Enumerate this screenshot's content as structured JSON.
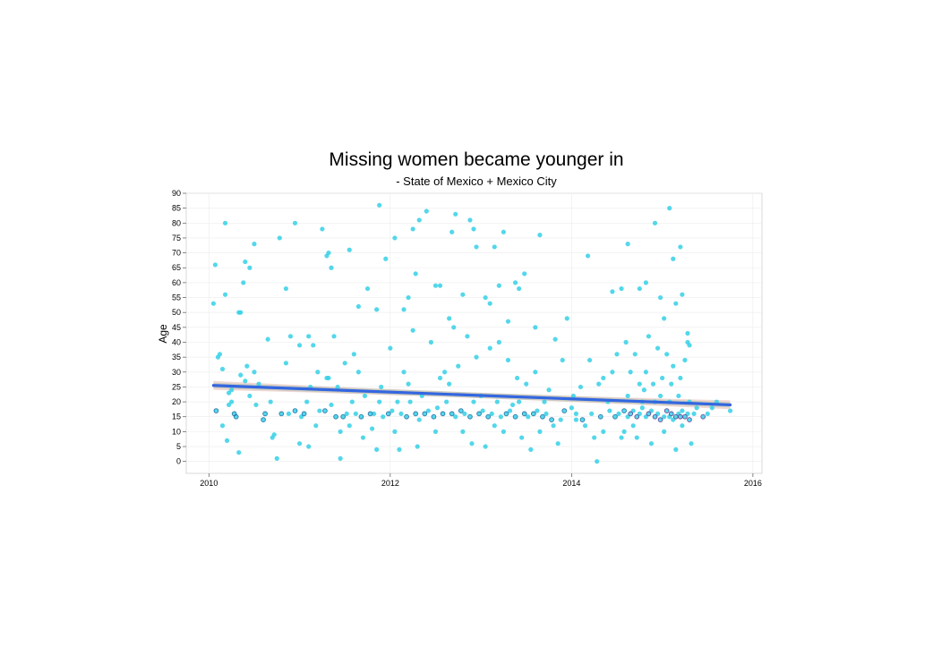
{
  "chart_data": {
    "type": "scatter",
    "title": "Missing women became younger in",
    "subtitle": "- State of Mexico + Mexico City",
    "xlabel": "",
    "ylabel": "Age",
    "xlim": [
      2009.75,
      2016.1
    ],
    "ylim": [
      -4,
      90
    ],
    "x_ticks": [
      2010,
      2012,
      2014,
      2016
    ],
    "y_ticks": [
      0,
      5,
      10,
      15,
      20,
      25,
      30,
      35,
      40,
      45,
      50,
      55,
      60,
      65,
      70,
      75,
      80,
      85,
      90
    ],
    "grid": true,
    "legend": "none",
    "colors": {
      "points": "#35d0e6",
      "point_outline": "#1f5f9a",
      "dense_overlap": "#6a2a8a",
      "trend_line": "#3366e0",
      "confidence_band": "#e6b8b0",
      "grid": "#ececec",
      "panel_border": "#d0d0d0"
    },
    "trend_line": {
      "type": "linear",
      "points": [
        {
          "x": 2010.05,
          "y": 25.5
        },
        {
          "x": 2015.75,
          "y": 19.0
        }
      ],
      "band_half_width_ends": 1.5
    },
    "series": [
      {
        "values": [
          [
            2010.05,
            53
          ],
          [
            2010.07,
            66
          ],
          [
            2010.1,
            35
          ],
          [
            2010.12,
            36
          ],
          [
            2010.15,
            31
          ],
          [
            2010.18,
            80
          ],
          [
            2010.18,
            56
          ],
          [
            2010.2,
            7
          ],
          [
            2010.22,
            23
          ],
          [
            2010.25,
            20
          ],
          [
            2010.3,
            15
          ],
          [
            2010.33,
            3
          ],
          [
            2010.33,
            50
          ],
          [
            2010.35,
            50
          ],
          [
            2010.38,
            60
          ],
          [
            2010.4,
            67
          ],
          [
            2010.42,
            32
          ],
          [
            2010.45,
            65
          ],
          [
            2010.5,
            73
          ],
          [
            2010.55,
            26
          ],
          [
            2010.65,
            41
          ],
          [
            2010.72,
            9
          ],
          [
            2010.75,
            1
          ],
          [
            2010.78,
            75
          ],
          [
            2010.85,
            58
          ],
          [
            2010.9,
            42
          ],
          [
            2010.95,
            80
          ],
          [
            2011.0,
            39
          ],
          [
            2011.05,
            16
          ],
          [
            2011.1,
            42
          ],
          [
            2011.15,
            39
          ],
          [
            2011.25,
            78
          ],
          [
            2011.3,
            69
          ],
          [
            2011.32,
            70
          ],
          [
            2011.35,
            65
          ],
          [
            2011.38,
            42
          ],
          [
            2011.45,
            1
          ],
          [
            2011.5,
            33
          ],
          [
            2011.55,
            71
          ],
          [
            2011.65,
            52
          ],
          [
            2011.75,
            58
          ],
          [
            2011.85,
            51
          ],
          [
            2011.88,
            86
          ],
          [
            2011.95,
            68
          ],
          [
            2012.05,
            75
          ],
          [
            2012.15,
            51
          ],
          [
            2012.2,
            55
          ],
          [
            2012.25,
            78
          ],
          [
            2012.28,
            63
          ],
          [
            2012.32,
            81
          ],
          [
            2012.4,
            84
          ],
          [
            2012.5,
            59
          ],
          [
            2012.55,
            59
          ],
          [
            2012.65,
            48
          ],
          [
            2012.68,
            77
          ],
          [
            2012.72,
            83
          ],
          [
            2012.8,
            56
          ],
          [
            2012.88,
            81
          ],
          [
            2012.92,
            78
          ],
          [
            2012.95,
            72
          ],
          [
            2013.05,
            55
          ],
          [
            2013.1,
            53
          ],
          [
            2013.15,
            72
          ],
          [
            2013.2,
            59
          ],
          [
            2013.25,
            77
          ],
          [
            2013.3,
            47
          ],
          [
            2013.38,
            60
          ],
          [
            2013.42,
            58
          ],
          [
            2013.48,
            63
          ],
          [
            2013.6,
            45
          ],
          [
            2013.65,
            76
          ],
          [
            2013.82,
            41
          ],
          [
            2013.95,
            48
          ],
          [
            2014.02,
            22
          ],
          [
            2014.1,
            25
          ],
          [
            2014.18,
            69
          ],
          [
            2014.28,
            0
          ],
          [
            2014.35,
            28
          ],
          [
            2014.45,
            57
          ],
          [
            2014.55,
            58
          ],
          [
            2014.62,
            73
          ],
          [
            2014.75,
            58
          ],
          [
            2014.82,
            60
          ],
          [
            2014.92,
            80
          ],
          [
            2014.98,
            55
          ],
          [
            2015.02,
            48
          ],
          [
            2015.08,
            85
          ],
          [
            2015.12,
            68
          ],
          [
            2015.15,
            53
          ],
          [
            2015.2,
            72
          ],
          [
            2015.22,
            56
          ],
          [
            2015.28,
            43
          ],
          [
            2015.3,
            39
          ],
          [
            2015.75,
            17
          ],
          [
            2010.08,
            17
          ],
          [
            2010.22,
            19
          ],
          [
            2010.28,
            16
          ],
          [
            2010.4,
            27
          ],
          [
            2010.45,
            22
          ],
          [
            2010.52,
            19
          ],
          [
            2010.62,
            16
          ],
          [
            2010.68,
            20
          ],
          [
            2010.8,
            16
          ],
          [
            2010.88,
            16
          ],
          [
            2010.95,
            17
          ],
          [
            2011.02,
            15
          ],
          [
            2011.08,
            20
          ],
          [
            2011.12,
            25
          ],
          [
            2011.18,
            12
          ],
          [
            2011.22,
            17
          ],
          [
            2011.28,
            17
          ],
          [
            2011.32,
            28
          ],
          [
            2011.4,
            15
          ],
          [
            2011.42,
            25
          ],
          [
            2011.48,
            15
          ],
          [
            2011.52,
            16
          ],
          [
            2011.58,
            20
          ],
          [
            2011.62,
            16
          ],
          [
            2011.68,
            15
          ],
          [
            2011.72,
            22
          ],
          [
            2011.78,
            16
          ],
          [
            2011.82,
            16
          ],
          [
            2011.88,
            20
          ],
          [
            2011.92,
            15
          ],
          [
            2011.98,
            16
          ],
          [
            2012.02,
            17
          ],
          [
            2012.08,
            20
          ],
          [
            2012.12,
            16
          ],
          [
            2012.18,
            15
          ],
          [
            2012.22,
            20
          ],
          [
            2012.28,
            16
          ],
          [
            2012.32,
            14
          ],
          [
            2012.38,
            16
          ],
          [
            2012.42,
            17
          ],
          [
            2012.48,
            15
          ],
          [
            2012.52,
            18
          ],
          [
            2012.58,
            16
          ],
          [
            2012.62,
            20
          ],
          [
            2012.68,
            16
          ],
          [
            2012.72,
            15
          ],
          [
            2012.78,
            17
          ],
          [
            2012.82,
            16
          ],
          [
            2012.88,
            15
          ],
          [
            2012.92,
            20
          ],
          [
            2012.98,
            16
          ],
          [
            2013.02,
            17
          ],
          [
            2013.08,
            15
          ],
          [
            2013.12,
            16
          ],
          [
            2013.18,
            20
          ],
          [
            2013.22,
            15
          ],
          [
            2013.28,
            16
          ],
          [
            2013.32,
            17
          ],
          [
            2013.38,
            15
          ],
          [
            2013.42,
            20
          ],
          [
            2013.48,
            16
          ],
          [
            2013.52,
            15
          ],
          [
            2013.58,
            16
          ],
          [
            2013.62,
            17
          ],
          [
            2013.68,
            15
          ],
          [
            2013.72,
            16
          ],
          [
            2013.78,
            14
          ],
          [
            2013.88,
            14
          ],
          [
            2013.92,
            17
          ],
          [
            2014.05,
            16
          ],
          [
            2014.12,
            14
          ],
          [
            2014.22,
            16
          ],
          [
            2014.32,
            15
          ],
          [
            2014.42,
            17
          ],
          [
            2014.48,
            15
          ],
          [
            2014.52,
            16
          ],
          [
            2014.58,
            17
          ],
          [
            2014.62,
            15
          ],
          [
            2014.65,
            16
          ],
          [
            2014.68,
            17
          ],
          [
            2014.72,
            15
          ],
          [
            2014.75,
            16
          ],
          [
            2014.78,
            18
          ],
          [
            2014.82,
            15
          ],
          [
            2014.85,
            16
          ],
          [
            2014.88,
            17
          ],
          [
            2014.92,
            15
          ],
          [
            2014.95,
            16
          ],
          [
            2014.98,
            14
          ],
          [
            2015.02,
            15
          ],
          [
            2015.05,
            17
          ],
          [
            2015.08,
            15
          ],
          [
            2015.1,
            16
          ],
          [
            2015.12,
            14
          ],
          [
            2015.15,
            15
          ],
          [
            2015.18,
            16
          ],
          [
            2015.2,
            15
          ],
          [
            2015.22,
            17
          ],
          [
            2015.25,
            15
          ],
          [
            2015.28,
            16
          ],
          [
            2015.3,
            14
          ],
          [
            2015.35,
            16
          ],
          [
            2015.45,
            15
          ],
          [
            2015.55,
            18
          ],
          [
            2010.15,
            12
          ],
          [
            2010.25,
            24
          ],
          [
            2010.35,
            29
          ],
          [
            2010.5,
            30
          ],
          [
            2010.6,
            14
          ],
          [
            2010.7,
            8
          ],
          [
            2010.85,
            33
          ],
          [
            2011.0,
            6
          ],
          [
            2011.1,
            5
          ],
          [
            2011.2,
            30
          ],
          [
            2011.3,
            28
          ],
          [
            2011.35,
            19
          ],
          [
            2011.45,
            10
          ],
          [
            2011.55,
            12
          ],
          [
            2011.6,
            36
          ],
          [
            2011.65,
            30
          ],
          [
            2011.7,
            8
          ],
          [
            2011.8,
            11
          ],
          [
            2011.85,
            4
          ],
          [
            2011.9,
            25
          ],
          [
            2012.0,
            38
          ],
          [
            2012.05,
            10
          ],
          [
            2012.1,
            4
          ],
          [
            2012.15,
            30
          ],
          [
            2012.2,
            26
          ],
          [
            2012.25,
            44
          ],
          [
            2012.3,
            5
          ],
          [
            2012.35,
            22
          ],
          [
            2012.45,
            40
          ],
          [
            2012.5,
            10
          ],
          [
            2012.55,
            28
          ],
          [
            2012.6,
            30
          ],
          [
            2012.65,
            26
          ],
          [
            2012.7,
            45
          ],
          [
            2012.75,
            32
          ],
          [
            2012.8,
            10
          ],
          [
            2012.85,
            42
          ],
          [
            2012.9,
            6
          ],
          [
            2012.95,
            35
          ],
          [
            2013.0,
            22
          ],
          [
            2013.05,
            5
          ],
          [
            2013.1,
            38
          ],
          [
            2013.15,
            12
          ],
          [
            2013.2,
            40
          ],
          [
            2013.25,
            10
          ],
          [
            2013.3,
            34
          ],
          [
            2013.35,
            19
          ],
          [
            2013.4,
            28
          ],
          [
            2013.45,
            8
          ],
          [
            2013.5,
            26
          ],
          [
            2013.55,
            4
          ],
          [
            2013.6,
            30
          ],
          [
            2013.65,
            10
          ],
          [
            2013.7,
            20
          ],
          [
            2013.75,
            24
          ],
          [
            2013.8,
            12
          ],
          [
            2013.85,
            6
          ],
          [
            2013.9,
            34
          ],
          [
            2014.0,
            18
          ],
          [
            2014.05,
            14
          ],
          [
            2014.15,
            12
          ],
          [
            2014.2,
            34
          ],
          [
            2014.25,
            8
          ],
          [
            2014.3,
            26
          ],
          [
            2014.35,
            10
          ],
          [
            2014.4,
            20
          ],
          [
            2014.45,
            30
          ],
          [
            2014.5,
            36
          ],
          [
            2014.55,
            8
          ],
          [
            2014.58,
            10
          ],
          [
            2014.6,
            40
          ],
          [
            2014.62,
            22
          ],
          [
            2014.65,
            30
          ],
          [
            2014.68,
            12
          ],
          [
            2014.7,
            36
          ],
          [
            2014.72,
            8
          ],
          [
            2014.75,
            26
          ],
          [
            2014.78,
            20
          ],
          [
            2014.8,
            24
          ],
          [
            2014.82,
            30
          ],
          [
            2014.85,
            42
          ],
          [
            2014.88,
            6
          ],
          [
            2014.9,
            26
          ],
          [
            2014.92,
            20
          ],
          [
            2014.95,
            38
          ],
          [
            2014.98,
            22
          ],
          [
            2015.0,
            28
          ],
          [
            2015.02,
            10
          ],
          [
            2015.05,
            36
          ],
          [
            2015.08,
            20
          ],
          [
            2015.1,
            26
          ],
          [
            2015.12,
            32
          ],
          [
            2015.15,
            4
          ],
          [
            2015.18,
            22
          ],
          [
            2015.2,
            28
          ],
          [
            2015.22,
            12
          ],
          [
            2015.25,
            34
          ],
          [
            2015.28,
            40
          ],
          [
            2015.3,
            20
          ],
          [
            2015.32,
            6
          ],
          [
            2015.38,
            18
          ],
          [
            2015.5,
            16
          ],
          [
            2015.6,
            20
          ]
        ]
      }
    ]
  }
}
